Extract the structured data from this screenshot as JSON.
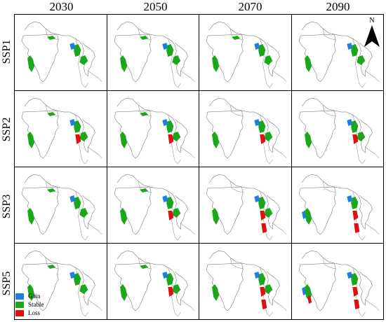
{
  "columns": [
    "2030",
    "2050",
    "2070",
    "2090"
  ],
  "rows": [
    "SSP1",
    "SSP2",
    "SSP3",
    "SSP5"
  ],
  "north_label": "N",
  "legend": [
    {
      "label": "Gain",
      "color": "#1f7fe0"
    },
    {
      "label": "Stable",
      "color": "#1aa81a"
    },
    {
      "label": "Loss",
      "color": "#e01010"
    }
  ],
  "panels": [
    {
      "scenario": "SSP1",
      "year": "2030",
      "gain": 1,
      "stable": 3,
      "loss": 0
    },
    {
      "scenario": "SSP1",
      "year": "2050",
      "gain": 1,
      "stable": 3,
      "loss": 0
    },
    {
      "scenario": "SSP1",
      "year": "2070",
      "gain": 1,
      "stable": 3,
      "loss": 0
    },
    {
      "scenario": "SSP1",
      "year": "2090",
      "gain": 1,
      "stable": 2,
      "loss": 0
    },
    {
      "scenario": "SSP2",
      "year": "2030",
      "gain": 1,
      "stable": 3,
      "loss": 1
    },
    {
      "scenario": "SSP2",
      "year": "2050",
      "gain": 1,
      "stable": 3,
      "loss": 1
    },
    {
      "scenario": "SSP2",
      "year": "2070",
      "gain": 1,
      "stable": 2,
      "loss": 1
    },
    {
      "scenario": "SSP2",
      "year": "2090",
      "gain": 1,
      "stable": 2,
      "loss": 1
    },
    {
      "scenario": "SSP3",
      "year": "2030",
      "gain": 1,
      "stable": 3,
      "loss": 0
    },
    {
      "scenario": "SSP3",
      "year": "2050",
      "gain": 1,
      "stable": 3,
      "loss": 1
    },
    {
      "scenario": "SSP3",
      "year": "2070",
      "gain": 1,
      "stable": 2,
      "loss": 2
    },
    {
      "scenario": "SSP3",
      "year": "2090",
      "gain": 2,
      "stable": 1,
      "loss": 2
    },
    {
      "scenario": "SSP5",
      "year": "2030",
      "gain": 1,
      "stable": 3,
      "loss": 0
    },
    {
      "scenario": "SSP5",
      "year": "2050",
      "gain": 1,
      "stable": 3,
      "loss": 1
    },
    {
      "scenario": "SSP5",
      "year": "2070",
      "gain": 1,
      "stable": 2,
      "loss": 2
    },
    {
      "scenario": "SSP5",
      "year": "2090",
      "gain": 2,
      "stable": 1,
      "loss": 3
    }
  ]
}
